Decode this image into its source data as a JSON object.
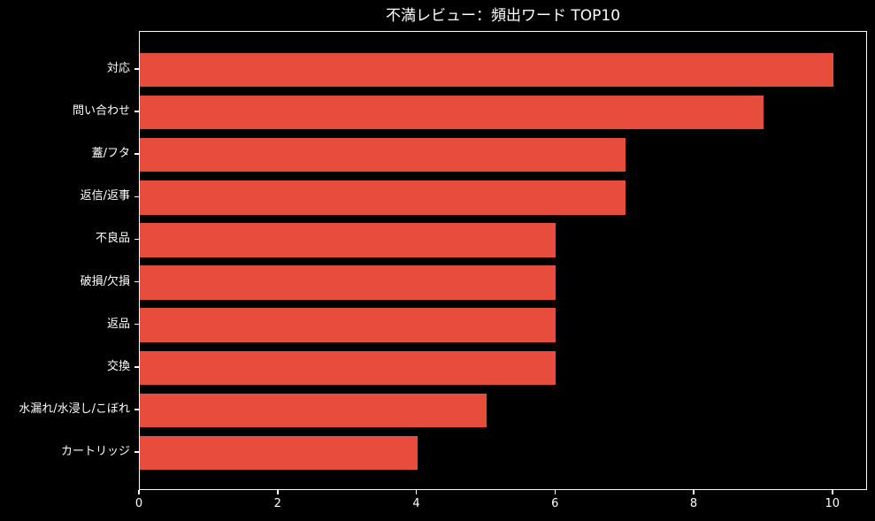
{
  "title": "不満レビュー：頻出ワード TOP10",
  "colors": {
    "background": "#000000",
    "bar": "#e74c3c",
    "text": "#ffffff",
    "spine": "#ffffff"
  },
  "chart_data": {
    "type": "bar",
    "orientation": "horizontal",
    "title": "不満レビュー：頻出ワード TOP10",
    "categories": [
      "対応",
      "問い合わせ",
      "蓋/フタ",
      "返信/返事",
      "不良品",
      "破損/欠損",
      "返品",
      "交換",
      "水漏れ/水浸し/こぼれ",
      "カートリッジ"
    ],
    "values": [
      10,
      9,
      7,
      7,
      6,
      6,
      6,
      6,
      5,
      4
    ],
    "xlabel": "",
    "ylabel": "",
    "xlim": [
      0,
      10.5
    ],
    "xticks": [
      0,
      2,
      4,
      6,
      8,
      10
    ],
    "bar_color": "#e74c3c",
    "bar_height_fraction": 0.8,
    "grid": false,
    "legend": null,
    "background": "#000000"
  }
}
